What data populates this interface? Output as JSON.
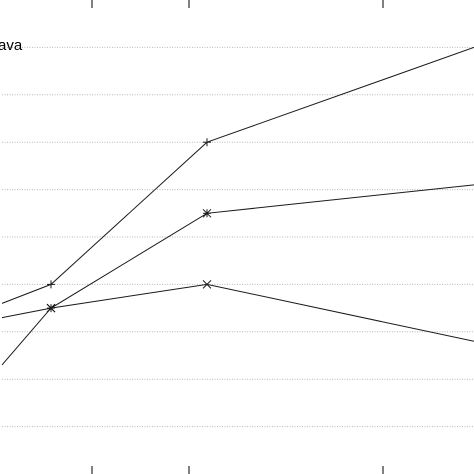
{
  "chart_data": {
    "type": "line",
    "title": "",
    "xlabel": "",
    "ylabel": "",
    "x": [
      0,
      1,
      2,
      3
    ],
    "xlim": [
      0,
      3
    ],
    "ylim": [
      0,
      10
    ],
    "yticks": [
      1,
      2,
      3,
      4,
      5,
      6,
      7,
      8,
      9
    ],
    "xticks": [
      0.5,
      1.5,
      2.5
    ],
    "grid": true,
    "grid_axis": "y",
    "legend_position": "top-left",
    "legend_visible_text": "ava",
    "series": [
      {
        "name": "",
        "marker": "plus",
        "values": [
          3.6,
          4.0,
          7.0,
          9.0
        ]
      },
      {
        "name": "",
        "marker": "star",
        "values": [
          3.3,
          3.5,
          5.5,
          6.1
        ]
      },
      {
        "name": "",
        "marker": "x",
        "values": [
          2.3,
          3.5,
          4.0,
          2.8
        ]
      }
    ]
  }
}
